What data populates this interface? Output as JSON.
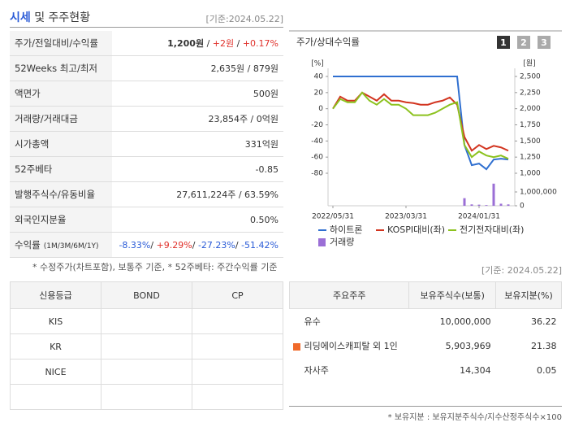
{
  "header": {
    "title_main": "시세",
    "title_rest": "및 주주현황",
    "date": "[기준:2024.05.22]"
  },
  "price_table": {
    "rows": [
      {
        "label": "주가/전일대비/수익률",
        "parts": [
          {
            "text": "1,200원",
            "bold": true
          },
          {
            "text": " / "
          },
          {
            "text": "+2원",
            "color": "#e0302a"
          },
          {
            "text": " / "
          },
          {
            "text": "+0.17%",
            "color": "#e0302a"
          }
        ]
      },
      {
        "label": "52Weeks 최고/최저",
        "parts": [
          {
            "text": "2,635원 / 879원"
          }
        ]
      },
      {
        "label": "액면가",
        "parts": [
          {
            "text": "500원"
          }
        ]
      },
      {
        "label": "거래량/거래대금",
        "parts": [
          {
            "text": "23,854주 / 0억원"
          }
        ]
      },
      {
        "label": "시가총액",
        "parts": [
          {
            "text": "331억원"
          }
        ]
      },
      {
        "label": "52주베타",
        "parts": [
          {
            "text": "-0.85"
          }
        ]
      },
      {
        "label": "발행주식수/유동비율",
        "parts": [
          {
            "text": "27,611,224주 / 63.59%"
          }
        ]
      },
      {
        "label": "외국인지분율",
        "parts": [
          {
            "text": "0.50%"
          }
        ]
      },
      {
        "label": "수익률",
        "label_sub": "(1M/3M/6M/1Y)",
        "parts": [
          {
            "text": "-8.33%",
            "color": "#2a5bd7"
          },
          {
            "text": "/ "
          },
          {
            "text": "+9.29%",
            "color": "#e0302a"
          },
          {
            "text": "/ "
          },
          {
            "text": "-27.23%",
            "color": "#2a5bd7"
          },
          {
            "text": "/ "
          },
          {
            "text": "-51.42%",
            "color": "#2a5bd7"
          }
        ]
      }
    ],
    "note": "* 수정주가(차트포함), 보통주 기준, * 52주베타: 주간수익률 기준"
  },
  "chart_data": {
    "type": "line",
    "title": "주가/상대수익률",
    "buttons": [
      "1",
      "2",
      "3"
    ],
    "y_unit": "[%]",
    "y2_unit": "[원]",
    "x": [
      0,
      1,
      2,
      3,
      4,
      5,
      6,
      7,
      8,
      9,
      10,
      11,
      12,
      13,
      14,
      15,
      16,
      17,
      18,
      19,
      20,
      21,
      22,
      23,
      24
    ],
    "xlim": [
      0,
      24
    ],
    "xticks": [
      {
        "value": 0,
        "label": "2022/05/31"
      },
      {
        "value": 10,
        "label": "2023/03/31"
      },
      {
        "value": 20,
        "label": "2024/01/31"
      }
    ],
    "ylim": [
      -80,
      40
    ],
    "yticks": [
      40,
      20,
      0,
      -20,
      -40,
      -60,
      -80
    ],
    "y2lim": [
      1000,
      2500
    ],
    "y2ticks": [
      {
        "value": 2500,
        "label": "2,500"
      },
      {
        "value": 2250,
        "label": "2,250"
      },
      {
        "value": 2000,
        "label": "2,000"
      },
      {
        "value": 1750,
        "label": "1,750"
      },
      {
        "value": 1500,
        "label": "1,500"
      },
      {
        "value": 1250,
        "label": "1,250"
      },
      {
        "value": 1000,
        "label": "1,000"
      }
    ],
    "volume_lim": [
      0,
      1000000
    ],
    "volume_ticks": [
      {
        "value": 1000000,
        "label": "1,000,000"
      },
      0
    ],
    "series": [
      {
        "name": "하이트론",
        "color": "#2f6fd0",
        "values": [
          40,
          40,
          40,
          40,
          40,
          40,
          40,
          40,
          40,
          40,
          40,
          40,
          40,
          40,
          40,
          40,
          40,
          40,
          -45,
          -70,
          -68,
          -75,
          -63,
          -62,
          -63
        ]
      },
      {
        "name": "KOSPI대비(좌)",
        "color": "#d2341f",
        "values": [
          0,
          15,
          10,
          10,
          20,
          15,
          10,
          18,
          10,
          10,
          8,
          7,
          5,
          5,
          8,
          10,
          14,
          5,
          -35,
          -52,
          -45,
          -50,
          -46,
          -48,
          -52
        ]
      },
      {
        "name": "전기전자대비(좌)",
        "color": "#8cc21f",
        "values": [
          0,
          12,
          8,
          8,
          20,
          10,
          5,
          12,
          5,
          5,
          0,
          -8,
          -8,
          -8,
          -5,
          0,
          5,
          8,
          -45,
          -60,
          -53,
          -58,
          -60,
          -58,
          -62
        ]
      },
      {
        "name": "거래량",
        "color": "#9b6fd6",
        "type": "bar",
        "axis": "volume",
        "values": [
          0,
          0,
          0,
          0,
          0,
          0,
          0,
          0,
          0,
          0,
          0,
          0,
          0,
          0,
          0,
          0,
          0,
          0,
          550000,
          100000,
          80000,
          50000,
          1600000,
          150000,
          100000
        ]
      }
    ]
  },
  "credit_table": {
    "headers": [
      "신용등급",
      "BOND",
      "CP"
    ],
    "rows": [
      [
        "KIS"
      ],
      [
        "KR"
      ],
      [
        "NICE"
      ]
    ]
  },
  "holders": {
    "date": "[기준: 2024.05.22]",
    "headers": [
      "주요주주",
      "보유주식수(보통)",
      "보유지분(%)"
    ],
    "rows": [
      [
        "유수",
        "10,000,000",
        "36.22"
      ],
      [
        "리딩에이스캐피탈 외 1인",
        "5,903,969",
        "21.38"
      ],
      [
        "자사주",
        "14,304",
        "0.05"
      ]
    ],
    "note": "* 보유지분 : 보유지분주식수/지수산정주식수×100"
  }
}
